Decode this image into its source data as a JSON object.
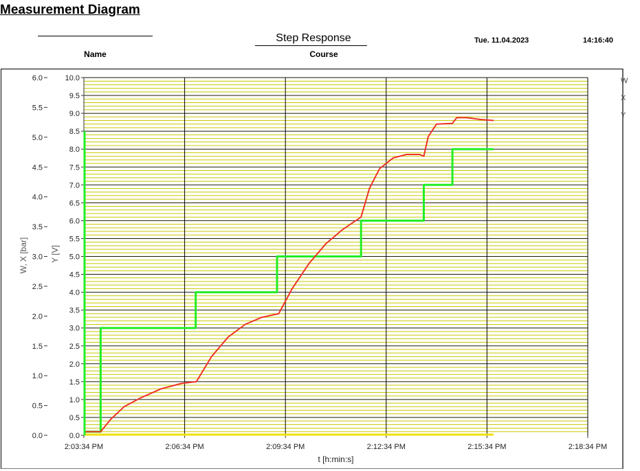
{
  "page": {
    "title": "Measurement Diagram",
    "name_label": "Name",
    "name_value": "",
    "course_label": "Course",
    "course_value": "Step Response",
    "date": "Tue. 11.04.2023",
    "time": "14:16:40"
  },
  "legend": [
    "W",
    "X",
    "Y"
  ],
  "colors": {
    "W": "#22ee22",
    "X": "#ee3322",
    "Y": "#f0e000",
    "grid_major": "#1a1a00",
    "grid_minor": "#c8c800"
  },
  "chart_data": {
    "type": "line",
    "xlabel": "t [h:min:s]",
    "ylabel_left": "W, X [bar]",
    "ylabel_right": "Y [V]",
    "x_range_minutes": [
      0,
      15
    ],
    "x_ticks": [
      "2:03:34 PM",
      "2:06:34 PM",
      "2:09:34 PM",
      "2:12:34 PM",
      "2:15:34 PM",
      "2:18:34 PM"
    ],
    "x_tick_minutes": [
      0,
      3,
      6,
      9,
      12,
      15
    ],
    "y_left": {
      "min": 0,
      "max": 6,
      "ticks": [
        "0.0",
        "0.5",
        "1.0",
        "1.5",
        "2.0",
        "2.5",
        "3.0",
        "3.5",
        "4.0",
        "4.5",
        "5.0",
        "5.5",
        "6.0"
      ]
    },
    "y_right": {
      "min": 0,
      "max": 10,
      "ticks": [
        "0.0",
        "0.5",
        "1.0",
        "1.5",
        "2.0",
        "2.5",
        "3.0",
        "3.5",
        "4.0",
        "4.5",
        "5.0",
        "5.5",
        "6.0",
        "6.5",
        "7.0",
        "7.5",
        "8.0",
        "8.5",
        "9.0",
        "9.5",
        "10.0"
      ]
    },
    "grid": true,
    "series": [
      {
        "name": "W",
        "axis": "right",
        "x": [
          0,
          0.5,
          0.5,
          3.33,
          3.33,
          5.75,
          5.75,
          8.25,
          8.25,
          10.12,
          10.12,
          10.97,
          10.97,
          12.2
        ],
        "y": [
          0.1,
          0.1,
          3.0,
          3.0,
          4.0,
          4.0,
          5.0,
          5.0,
          6.0,
          6.0,
          7.0,
          7.0,
          8.0,
          8.0
        ]
      },
      {
        "name": "X",
        "axis": "right",
        "x": [
          0,
          0.5,
          0.8,
          1.2,
          1.7,
          2.3,
          2.9,
          3.35,
          3.8,
          4.3,
          4.8,
          5.3,
          5.8,
          6.2,
          6.7,
          7.2,
          7.7,
          8.25,
          8.5,
          8.8,
          9.2,
          9.6,
          10.0,
          10.12,
          10.25,
          10.5,
          10.97,
          11.1,
          11.4,
          11.8,
          12.2
        ],
        "y": [
          0.1,
          0.1,
          0.45,
          0.8,
          1.05,
          1.3,
          1.45,
          1.5,
          2.2,
          2.75,
          3.1,
          3.3,
          3.4,
          4.1,
          4.8,
          5.35,
          5.75,
          6.1,
          6.9,
          7.45,
          7.75,
          7.85,
          7.85,
          7.8,
          8.35,
          8.7,
          8.72,
          8.88,
          8.88,
          8.83,
          8.8
        ]
      },
      {
        "name": "Y",
        "axis": "right",
        "x": [
          0,
          12.2
        ],
        "y": [
          0.02,
          0.02
        ]
      }
    ]
  }
}
